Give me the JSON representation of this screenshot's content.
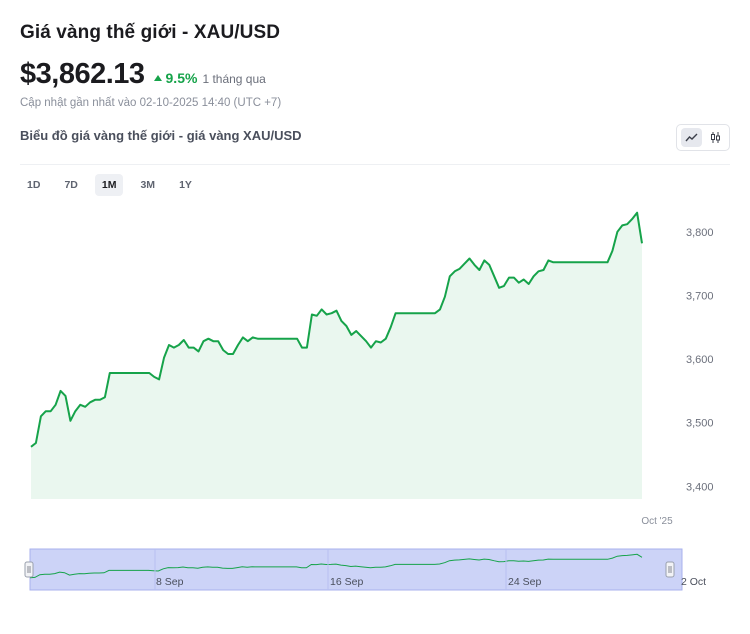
{
  "header": {
    "title": "Giá vàng thế giới - XAU/USD",
    "price": "$3,862.13",
    "change": "9.5%",
    "period": "1 tháng qua",
    "updated": "Cập nhật gần nhất vào 02-10-2025 14:40 (UTC +7)"
  },
  "chart_section": {
    "title": "Biểu đồ giá vàng thế giới - giá vàng XAU/USD",
    "ranges": [
      "1D",
      "7D",
      "1M",
      "3M",
      "1Y"
    ],
    "active_range": "1M",
    "toggle_icons": [
      "line-chart-icon",
      "candlestick-icon"
    ]
  },
  "colors": {
    "line": "#16a34a",
    "area": "#eaf7ef",
    "navigator_bg": "#ccd3f7",
    "navigator_border": "#a8b2ee",
    "text_muted": "#8a8f9b"
  },
  "chart_data": {
    "type": "area",
    "title": "",
    "xlabel": "",
    "ylabel": "",
    "ylim": [
      3380,
      3850
    ],
    "y_ticks": [
      3400,
      3500,
      3600,
      3700,
      3800
    ],
    "y_tick_labels": [
      "3,400",
      "3,500",
      "3,600",
      "3,700",
      "3,800"
    ],
    "x_tick_labels": [
      "Oct '25"
    ],
    "grid": false,
    "series": [
      {
        "values": [
          3462,
          3468,
          3510,
          3518,
          3518,
          3528,
          3550,
          3542,
          3503,
          3518,
          3528,
          3525,
          3532,
          3536,
          3536,
          3540,
          3578,
          3578,
          3578,
          3578,
          3578,
          3578,
          3578,
          3578,
          3578,
          3572,
          3568,
          3602,
          3622,
          3618,
          3622,
          3630,
          3618,
          3618,
          3612,
          3628,
          3632,
          3628,
          3628,
          3614,
          3608,
          3608,
          3622,
          3634,
          3628,
          3634,
          3632,
          3632,
          3632,
          3632,
          3632,
          3632,
          3632,
          3632,
          3632,
          3618,
          3618,
          3670,
          3668,
          3678,
          3670,
          3672,
          3676,
          3660,
          3652,
          3638,
          3644,
          3636,
          3628,
          3618,
          3628,
          3626,
          3632,
          3650,
          3672,
          3672,
          3672,
          3672,
          3672,
          3672,
          3672,
          3672,
          3672,
          3678,
          3698,
          3730,
          3738,
          3742,
          3750,
          3758,
          3748,
          3740,
          3755,
          3748,
          3730,
          3712,
          3715,
          3728,
          3728,
          3720,
          3725,
          3718,
          3730,
          3738,
          3740,
          3755,
          3752,
          3752,
          3752,
          3752,
          3752,
          3752,
          3752,
          3752,
          3752,
          3752,
          3752,
          3752,
          3770,
          3800,
          3810,
          3812,
          3820,
          3830,
          3782
        ]
      }
    ],
    "navigator_labels": [
      "8 Sep",
      "16 Sep",
      "24 Sep",
      "2 Oct"
    ]
  }
}
